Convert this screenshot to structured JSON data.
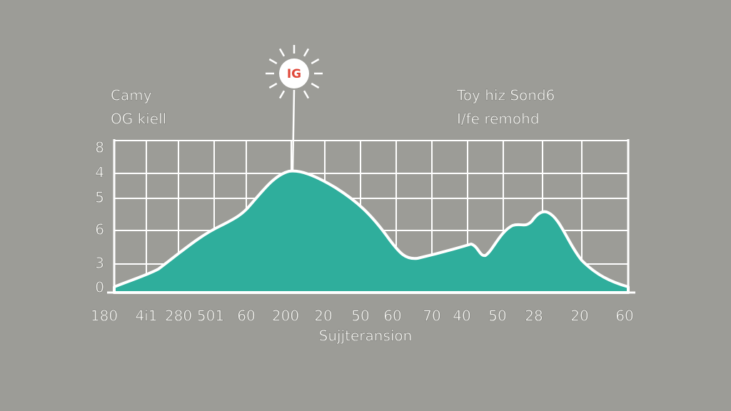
{
  "badge": "IG",
  "left_caption": [
    "Camy",
    "OG kiell"
  ],
  "right_caption": [
    "Toy hiz Sond6",
    "I/fe remohd"
  ],
  "y_labels": [
    "8",
    "4",
    "5",
    "6",
    "3",
    "0"
  ],
  "x_labels": [
    "180",
    "4i1",
    "280",
    "501",
    "60",
    "200",
    "20",
    "50",
    "60",
    "70",
    "40",
    "50",
    "28",
    "20",
    "60"
  ],
  "x_title": "Sujjteransion"
}
